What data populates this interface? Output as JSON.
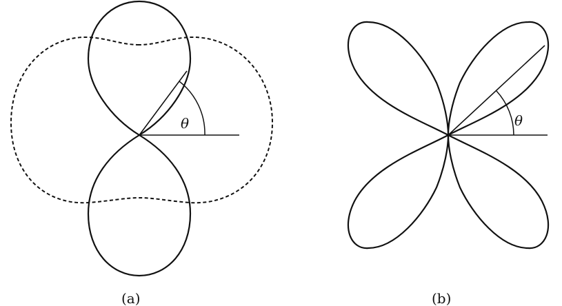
{
  "panel_a": {
    "label": "(a)",
    "angle_symbol": "θ"
  },
  "panel_b": {
    "label": "(b)",
    "angle_symbol": "θ"
  },
  "colors": {
    "stroke": "#111111",
    "background": "#ffffff"
  }
}
